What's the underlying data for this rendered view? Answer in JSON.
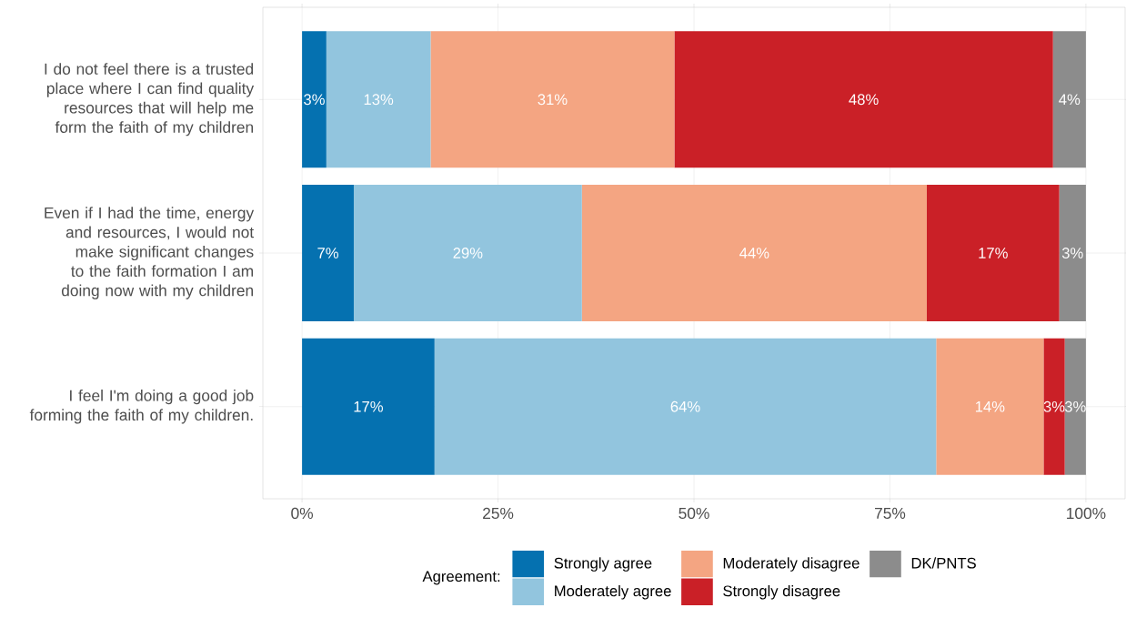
{
  "chart_data": {
    "type": "bar",
    "orientation": "horizontal",
    "stacked": true,
    "categories": [
      "I do not feel there is a trusted place where I can find quality resources that will help me form the faith of my children",
      "Even if I had the time, energy and resources, I would not make significant changes to the faith formation I am doing now with my children",
      "I feel I'm doing a good job forming the faith of my children."
    ],
    "legend_title": "Agreement:",
    "series": [
      {
        "name": "Strongly agree",
        "color": "#0571b0",
        "values": [
          3.1,
          6.6,
          16.9
        ],
        "value_labels": [
          "3%",
          "7%",
          "17%"
        ]
      },
      {
        "name": "Moderately agree",
        "color": "#92c5de",
        "values": [
          13.3,
          29.1,
          64.0
        ],
        "value_labels": [
          "13%",
          "29%",
          "64%"
        ]
      },
      {
        "name": "Moderately disagree",
        "color": "#f4a582",
        "values": [
          31.1,
          44.0,
          13.7
        ],
        "value_labels": [
          "31%",
          "44%",
          "14%"
        ]
      },
      {
        "name": "Strongly disagree",
        "color": "#ca2027",
        "values": [
          48.3,
          16.9,
          2.7
        ],
        "value_labels": [
          "48%",
          "17%",
          "3%"
        ]
      },
      {
        "name": "DK/PNTS",
        "color": "#8c8c8c",
        "values": [
          4.2,
          3.4,
          2.7
        ],
        "value_labels": [
          "4%",
          "3%",
          "3%"
        ]
      }
    ],
    "xlim": [
      -5,
      105
    ],
    "xticks": [
      {
        "value": 0,
        "label": "0%"
      },
      {
        "value": 25,
        "label": "25%"
      },
      {
        "value": 50,
        "label": "50%"
      },
      {
        "value": 75,
        "label": "75%"
      },
      {
        "value": 100,
        "label": "100%"
      }
    ],
    "grid": true,
    "legend": "bottom"
  }
}
